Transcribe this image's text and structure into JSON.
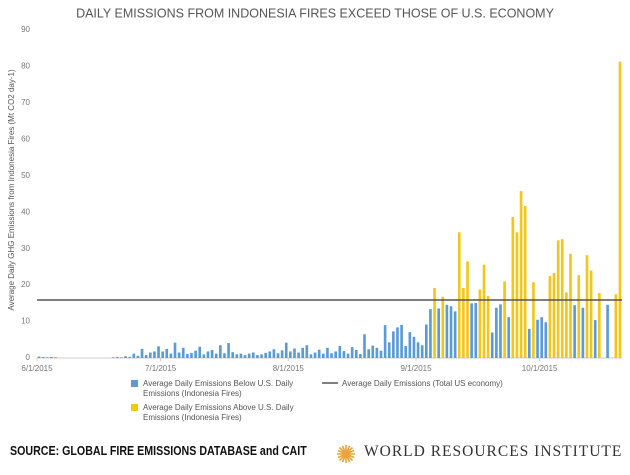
{
  "chart_data": {
    "type": "bar",
    "title": "DAILY EMISSIONS FROM INDONESIA FIRES EXCEED THOSE OF U.S. ECONOMY",
    "y_label": "Average Daily GHG Emissions from Indonesia Fires (Mt CO2 day-1)",
    "categories": [
      "6/1/2015",
      null,
      null,
      null,
      null,
      null,
      null,
      null,
      null,
      null,
      null,
      null,
      null,
      null,
      null,
      null,
      null,
      null,
      null,
      null,
      null,
      null,
      null,
      null,
      null,
      null,
      null,
      null,
      null,
      null,
      "7/1/2015",
      null,
      null,
      null,
      null,
      null,
      null,
      null,
      null,
      null,
      null,
      null,
      null,
      null,
      null,
      null,
      null,
      null,
      null,
      null,
      null,
      null,
      null,
      null,
      null,
      null,
      null,
      null,
      null,
      null,
      null,
      "8/1/2015",
      null,
      null,
      null,
      null,
      null,
      null,
      null,
      null,
      null,
      null,
      null,
      null,
      null,
      null,
      null,
      null,
      null,
      null,
      null,
      null,
      null,
      null,
      null,
      null,
      null,
      null,
      null,
      null,
      null,
      null,
      "9/1/2015",
      null,
      null,
      null,
      null,
      null,
      null,
      null,
      null,
      null,
      null,
      null,
      null,
      null,
      null,
      null,
      null,
      null,
      null,
      null,
      null,
      null,
      null,
      null,
      null,
      null,
      null,
      null,
      null,
      null,
      "10/1/2015",
      null,
      null,
      null,
      null,
      null,
      null,
      null,
      null,
      null,
      null,
      null,
      null,
      null,
      null,
      null,
      null,
      null,
      null,
      null
    ],
    "series": [
      {
        "name": "Average Daily Emissions Below U.S. Daily Emissions (Indonesia Fires)",
        "color": "#5b9bd5",
        "values": [
          0.4,
          0.3,
          0.2,
          0.3,
          0.2,
          null,
          null,
          null,
          null,
          null,
          null,
          null,
          null,
          null,
          null,
          null,
          null,
          null,
          0.2,
          0.3,
          0.2,
          0.5,
          0.3,
          1.2,
          0.6,
          2.5,
          0.8,
          1.5,
          1.8,
          3.2,
          1.8,
          2.5,
          1.2,
          4.2,
          1.5,
          2.8,
          1.1,
          1.4,
          2.0,
          3.1,
          1.0,
          1.8,
          2.2,
          1.2,
          3.5,
          1.3,
          4.1,
          1.6,
          1.0,
          1.2,
          0.8,
          1.2,
          1.5,
          0.8,
          1.0,
          1.4,
          1.8,
          2.4,
          1.3,
          2.1,
          4.2,
          1.8,
          2.6,
          1.5,
          2.8,
          3.5,
          1.0,
          1.5,
          2.3,
          1.2,
          2.8,
          1.3,
          1.8,
          3.3,
          1.9,
          1.2,
          3.0,
          2.2,
          1.1,
          6.5,
          2.4,
          3.4,
          2.8,
          2.0,
          9.0,
          4.3,
          7.3,
          8.4,
          9.1,
          3.3,
          7.1,
          5.8,
          4.3,
          3.5,
          9.2,
          13.4,
          null,
          13.6,
          null,
          14.6,
          14.2,
          12.8,
          null,
          null,
          null,
          15.0,
          15.1,
          null,
          null,
          null,
          7.0,
          13.8,
          14.7,
          null,
          11.2,
          null,
          null,
          null,
          null,
          8.0,
          null,
          10.5,
          11.2,
          9.8,
          null,
          null,
          null,
          null,
          null,
          null,
          14.5,
          null,
          13.8,
          null,
          null,
          10.4,
          null,
          null,
          14.6,
          null,
          null,
          null
        ]
      },
      {
        "name": "Average Daily Emissions Above U.S. Daily Emissions (Indonesia Fires)",
        "color": "#f5c518",
        "values": [
          null,
          null,
          null,
          null,
          null,
          null,
          null,
          null,
          null,
          null,
          null,
          null,
          null,
          null,
          null,
          null,
          null,
          null,
          null,
          null,
          null,
          null,
          null,
          null,
          null,
          null,
          null,
          null,
          null,
          null,
          null,
          null,
          null,
          null,
          null,
          null,
          null,
          null,
          null,
          null,
          null,
          null,
          null,
          null,
          null,
          null,
          null,
          null,
          null,
          null,
          null,
          null,
          null,
          null,
          null,
          null,
          null,
          null,
          null,
          null,
          null,
          null,
          null,
          null,
          null,
          null,
          null,
          null,
          null,
          null,
          null,
          null,
          null,
          null,
          null,
          null,
          null,
          null,
          null,
          null,
          null,
          null,
          null,
          null,
          null,
          null,
          null,
          null,
          null,
          null,
          null,
          null,
          null,
          null,
          null,
          null,
          19.2,
          null,
          16.8,
          null,
          null,
          null,
          34.5,
          19.2,
          26.5,
          null,
          null,
          18.8,
          25.6,
          17.0,
          null,
          null,
          null,
          21.0,
          null,
          38.7,
          34.5,
          45.8,
          41.7,
          null,
          20.8,
          null,
          null,
          null,
          22.5,
          23.3,
          32.3,
          32.6,
          18.0,
          28.6,
          null,
          22.7,
          null,
          28.2,
          24.0,
          null,
          17.8,
          null,
          null,
          null,
          17.5,
          81.3
        ]
      }
    ],
    "reference": {
      "name": "Average Daily Emissions (Total US economy)",
      "value": 15.9,
      "color": "#555555"
    },
    "ylim": [
      0,
      90
    ],
    "yticks": [
      0,
      10,
      20,
      30,
      40,
      50,
      60,
      70,
      80,
      90
    ],
    "grid": false
  },
  "footer": {
    "source": "SOURCE: GLOBAL FIRE EMISSIONS DATABASE and CAIT",
    "publisher": "WORLD RESOURCES INSTITUTE"
  }
}
